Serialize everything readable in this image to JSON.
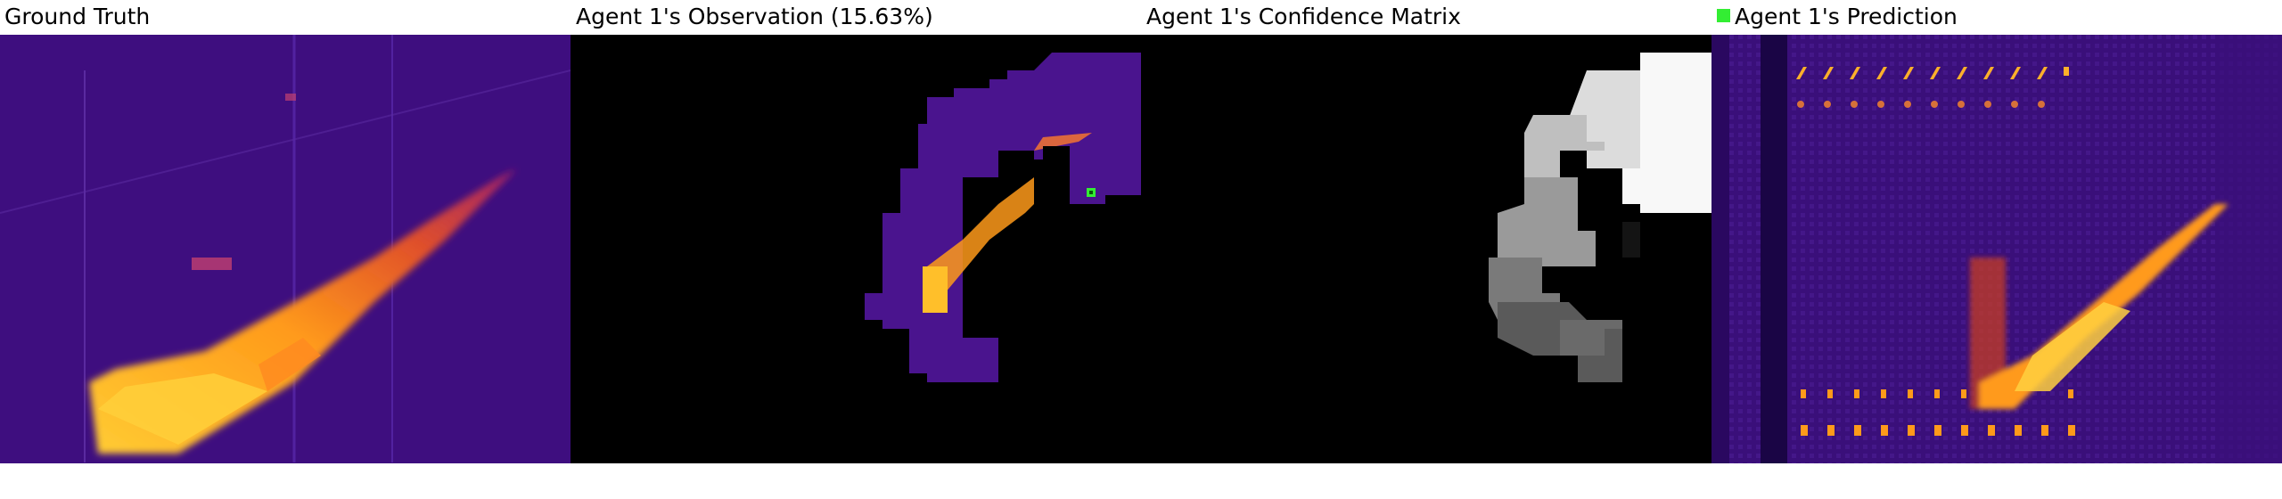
{
  "panels": [
    {
      "title": "Ground Truth"
    },
    {
      "title": "Agent 1's Observation (15.63%)"
    },
    {
      "title": "Agent 1's Confidence Matrix"
    },
    {
      "title": "Agent 1's Prediction"
    }
  ],
  "legend": {
    "color": "#33ee33"
  },
  "colors": {
    "background": "#ffffff",
    "heat_low": "#3a0a70",
    "heat_mid": "#c02a7a",
    "heat_high": "#ffd84a",
    "mask": "#000000"
  }
}
